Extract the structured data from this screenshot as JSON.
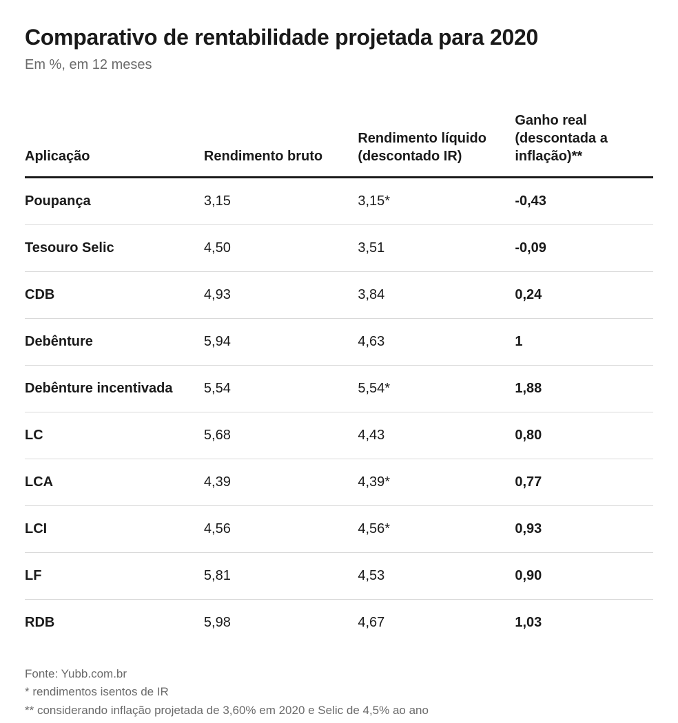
{
  "header": {
    "title": "Comparativo de rentabilidade projetada para 2020",
    "subtitle": "Em %, em 12 meses"
  },
  "table": {
    "type": "table",
    "background_color": "#ffffff",
    "border_color": "#d9d9d9",
    "header_border_color": "#1a1a1a",
    "text_color": "#1a1a1a",
    "muted_text_color": "#6b6b6b",
    "title_fontsize": 32,
    "subtitle_fontsize": 20,
    "header_fontsize": 20,
    "cell_fontsize": 20,
    "footnote_fontsize": 17,
    "column_widths_pct": [
      28.5,
      24.5,
      25,
      22
    ],
    "columns": [
      {
        "key": "aplicacao",
        "label": "Aplicação",
        "bold": true,
        "align": "left"
      },
      {
        "key": "bruto",
        "label": "Rendimento bruto",
        "bold": false,
        "align": "left"
      },
      {
        "key": "liquido",
        "label": "Rendimento líquido (descontado IR)",
        "bold": false,
        "align": "left"
      },
      {
        "key": "ganho_real",
        "label": "Ganho real (descontada a inflação)**",
        "bold": true,
        "align": "left"
      }
    ],
    "rows": [
      {
        "aplicacao": "Poupança",
        "bruto": "3,15",
        "liquido": "3,15*",
        "ganho_real": "-0,43"
      },
      {
        "aplicacao": "Tesouro Selic",
        "bruto": "4,50",
        "liquido": "3,51",
        "ganho_real": "-0,09"
      },
      {
        "aplicacao": "CDB",
        "bruto": "4,93",
        "liquido": "3,84",
        "ganho_real": "0,24"
      },
      {
        "aplicacao": "Debênture",
        "bruto": "5,94",
        "liquido": "4,63",
        "ganho_real": "1"
      },
      {
        "aplicacao": "Debênture incentivada",
        "bruto": "5,54",
        "liquido": "5,54*",
        "ganho_real": "1,88"
      },
      {
        "aplicacao": "LC",
        "bruto": "5,68",
        "liquido": "4,43",
        "ganho_real": "0,80"
      },
      {
        "aplicacao": "LCA",
        "bruto": "4,39",
        "liquido": "4,39*",
        "ganho_real": "0,77"
      },
      {
        "aplicacao": "LCI",
        "bruto": "4,56",
        "liquido": "4,56*",
        "ganho_real": "0,93"
      },
      {
        "aplicacao": "LF",
        "bruto": "5,81",
        "liquido": "4,53",
        "ganho_real": "0,90"
      },
      {
        "aplicacao": "RDB",
        "bruto": "5,98",
        "liquido": "4,67",
        "ganho_real": "1,03"
      }
    ]
  },
  "footnotes": [
    "Fonte: Yubb.com.br",
    "* rendimentos isentos de IR",
    "** considerando inflação projetada de 3,60% em 2020 e Selic de 4,5% ao ano"
  ]
}
